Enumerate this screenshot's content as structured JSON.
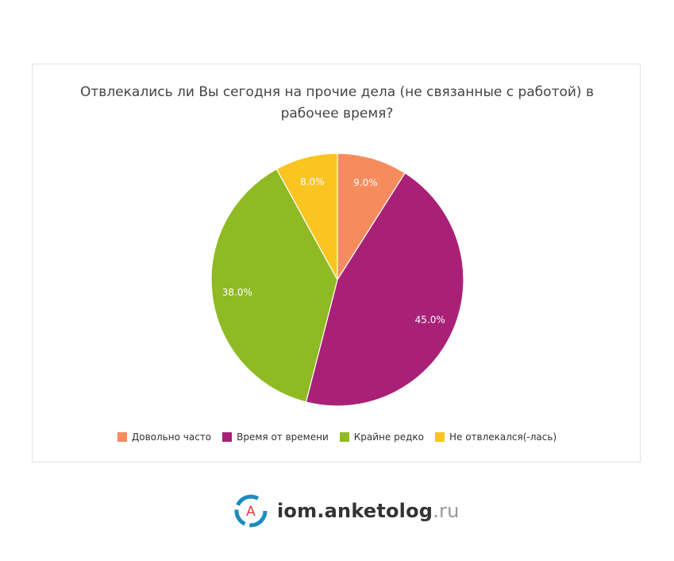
{
  "chart_data": {
    "type": "pie",
    "title": "Отвлекались ли Вы сегодня на прочие дела (не связанные с работой) в рабочее время?",
    "slices": [
      {
        "label": "Довольно часто",
        "value": 9.0,
        "display": "9.0%",
        "color": "#F68C5E"
      },
      {
        "label": "Время от времени",
        "value": 45.0,
        "display": "45.0%",
        "color": "#A82177"
      },
      {
        "label": "Крайне редко",
        "value": 38.0,
        "display": "38.0%",
        "color": "#8FBA23"
      },
      {
        "label": "Не отвлекался(-лась)",
        "value": 8.0,
        "display": "8.0%",
        "color": "#FAC421"
      }
    ],
    "legend_position": "bottom"
  },
  "branding": {
    "logo_letter": "A",
    "site_main": "iom.anketolog",
    "site_suffix": ".ru"
  }
}
